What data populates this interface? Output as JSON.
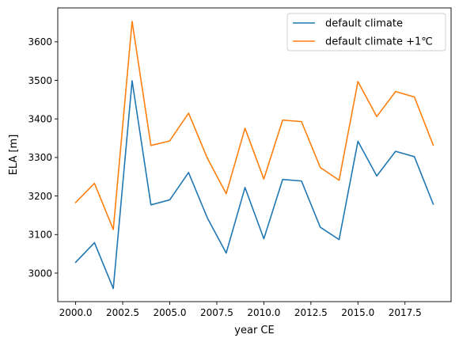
{
  "chart_data": {
    "type": "line",
    "title": "",
    "xlabel": "year CE",
    "ylabel": "ELA [m]",
    "xlim": [
      1999.05,
      2019.95
    ],
    "ylim": [
      2926,
      3688
    ],
    "xticks": [
      2000.0,
      2002.5,
      2005.0,
      2007.5,
      2010.0,
      2012.5,
      2015.0,
      2017.5
    ],
    "xtick_labels": [
      "2000.0",
      "2002.5",
      "2005.0",
      "2007.5",
      "2010.0",
      "2012.5",
      "2015.0",
      "2017.5"
    ],
    "yticks": [
      3000,
      3100,
      3200,
      3300,
      3400,
      3500,
      3600
    ],
    "ytick_labels": [
      "3000",
      "3100",
      "3200",
      "3300",
      "3400",
      "3500",
      "3600"
    ],
    "grid": false,
    "legend_position": "top-right",
    "x": [
      2000,
      2001,
      2002,
      2003,
      2004,
      2005,
      2006,
      2007,
      2008,
      2009,
      2010,
      2011,
      2012,
      2013,
      2014,
      2015,
      2016,
      2017,
      2018,
      2019
    ],
    "series": [
      {
        "name": "default climate",
        "color": "#1f77b4",
        "values": [
          3028,
          3079,
          2960,
          3499,
          3177,
          3190,
          3261,
          3143,
          3052,
          3222,
          3089,
          3243,
          3239,
          3119,
          3087,
          3342,
          3252,
          3316,
          3302,
          3179
        ]
      },
      {
        "name": "default climate +1℃",
        "color": "#ff7f0e",
        "values": [
          3183,
          3233,
          3113,
          3653,
          3331,
          3343,
          3415,
          3298,
          3206,
          3376,
          3244,
          3397,
          3393,
          3274,
          3241,
          3497,
          3406,
          3471,
          3457,
          3332
        ]
      }
    ]
  }
}
